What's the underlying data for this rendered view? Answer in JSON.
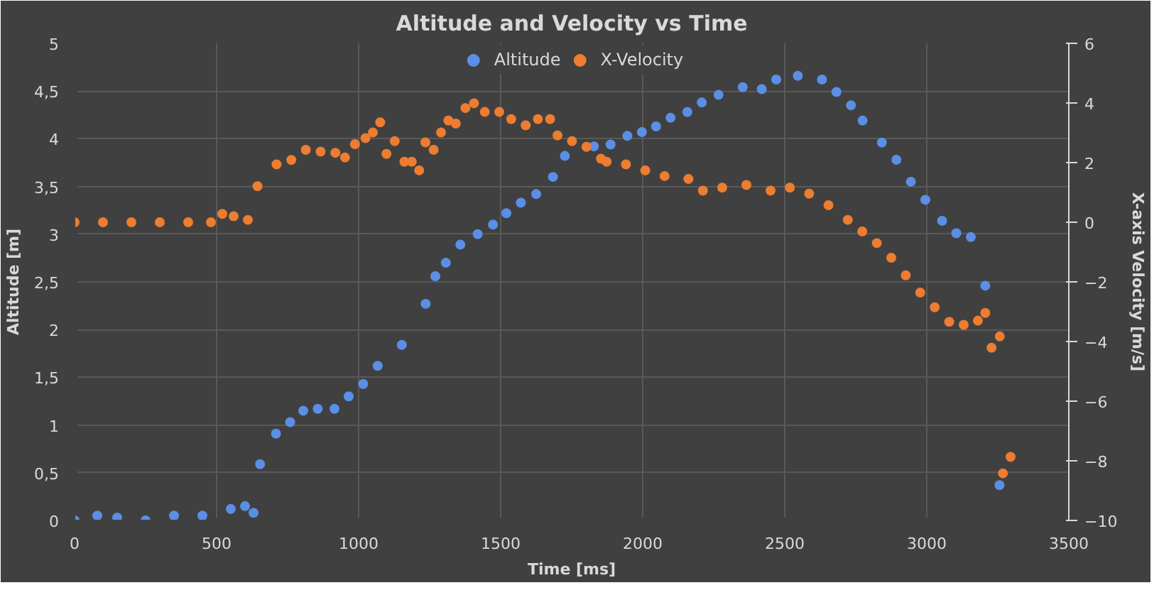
{
  "chart_data": {
    "type": "scatter",
    "title": "Altitude and Velocity vs Time",
    "xlabel": "Time [ms]",
    "ylabel": "Altitude [m]",
    "y2label": "X-axis Velocity [m/s]",
    "xlim": [
      0,
      3500
    ],
    "xticks": [
      0,
      500,
      1000,
      1500,
      2000,
      2500,
      3000,
      3500
    ],
    "ylim": [
      0,
      5
    ],
    "yticks": [
      0,
      {
        "value": 0.5,
        "label": "0,5"
      },
      1,
      {
        "value": 1.5,
        "label": "1,5"
      },
      2,
      {
        "value": 2.5,
        "label": "2,5"
      },
      3,
      {
        "value": 3.5,
        "label": "3,5"
      },
      4,
      {
        "value": 4.5,
        "label": "4,5"
      },
      5
    ],
    "y2lim": [
      -10,
      6
    ],
    "y2ticks": [
      -10,
      -8,
      -6,
      -4,
      -2,
      0,
      2,
      4,
      6
    ],
    "grid": true,
    "legend": "top",
    "marker": "circle",
    "series": [
      {
        "name": "Altitude",
        "color": "#5b8fe6",
        "x": [
          0,
          80,
          150,
          250,
          350,
          450,
          550,
          600,
          630,
          653,
          709,
          759,
          805,
          856,
          915,
          965,
          1016,
          1067,
          1152,
          1236,
          1270,
          1307,
          1358,
          1419,
          1473,
          1520,
          1571,
          1625,
          1684,
          1726,
          1828,
          1887,
          1946,
          1997,
          2047,
          2098,
          2157,
          2208,
          2267,
          2352,
          2419,
          2470,
          2546,
          2631,
          2682,
          2733,
          2774,
          2842,
          2893,
          2944,
          2995,
          3054,
          3104,
          3155,
          3206,
          3256
        ],
        "values": [
          0,
          0.05,
          0.03,
          0,
          0.05,
          0.05,
          0.12,
          0.15,
          0.08,
          0.59,
          0.91,
          1.03,
          1.15,
          1.17,
          1.17,
          1.3,
          1.43,
          1.62,
          1.84,
          2.27,
          2.56,
          2.7,
          2.89,
          3.0,
          3.1,
          3.22,
          3.33,
          3.42,
          3.6,
          3.82,
          3.92,
          3.94,
          4.03,
          4.07,
          4.13,
          4.22,
          4.28,
          4.38,
          4.46,
          4.54,
          4.52,
          4.62,
          4.66,
          4.62,
          4.49,
          4.35,
          4.19,
          3.96,
          3.78,
          3.55,
          3.36,
          3.14,
          3.01,
          2.97,
          2.46,
          0.37
        ]
      },
      {
        "name": "X-Velocity",
        "color": "#ed7d31",
        "axis": "y2",
        "x": [
          0,
          100,
          200,
          300,
          400,
          480,
          520,
          560,
          610,
          644,
          711,
          763,
          814,
          866,
          918,
          952,
          987,
          1024,
          1050,
          1076,
          1098,
          1127,
          1161,
          1187,
          1213,
          1235,
          1264,
          1290,
          1316,
          1342,
          1376,
          1406,
          1444,
          1495,
          1537,
          1588,
          1631,
          1674,
          1700,
          1751,
          1802,
          1853,
          1873,
          1941,
          2009,
          2077,
          2161,
          2212,
          2280,
          2365,
          2450,
          2518,
          2586,
          2654,
          2722,
          2773,
          2824,
          2875,
          2926,
          2977,
          3028,
          3079,
          3130,
          3180,
          3206,
          3228,
          3257,
          3268,
          3295
        ],
        "values": [
          0,
          0,
          0,
          0,
          0,
          0,
          0.28,
          0.2,
          0.08,
          1.21,
          1.94,
          2.09,
          2.43,
          2.37,
          2.33,
          2.17,
          2.62,
          2.82,
          3.01,
          3.35,
          2.29,
          2.72,
          2.03,
          2.03,
          1.74,
          2.68,
          2.43,
          3.01,
          3.41,
          3.31,
          3.83,
          3.99,
          3.7,
          3.7,
          3.46,
          3.25,
          3.46,
          3.46,
          2.91,
          2.72,
          2.53,
          2.13,
          2.03,
          1.94,
          1.74,
          1.55,
          1.45,
          1.06,
          1.16,
          1.25,
          1.06,
          1.16,
          0.96,
          0.57,
          0.08,
          -0.31,
          -0.7,
          -1.19,
          -1.78,
          -2.36,
          -2.85,
          -3.34,
          -3.44,
          -3.3,
          -3.04,
          -4.21,
          -3.83,
          -8.42,
          -7.87
        ]
      }
    ]
  }
}
